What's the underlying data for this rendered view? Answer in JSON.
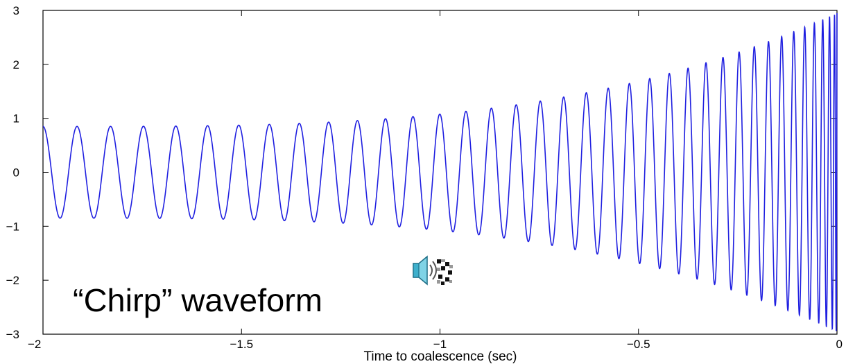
{
  "chart_data": {
    "type": "line",
    "title": "",
    "xlabel": "Time to coalescence (sec)",
    "ylabel": "",
    "xlim": [
      -2,
      0
    ],
    "ylim": [
      -3,
      3
    ],
    "xticks": [
      -2,
      -1.5,
      -1,
      -0.5,
      0
    ],
    "xtick_labels": [
      "−2",
      "−1.5",
      "−1",
      "−0.5",
      "0"
    ],
    "yticks": [
      -3,
      -2,
      -1,
      0,
      1,
      2,
      3
    ],
    "ytick_labels": [
      "−3",
      "−2",
      "−1",
      "0",
      "1",
      "2",
      "3"
    ],
    "grid": false,
    "series": [
      {
        "color": "#1f1fe0",
        "model": "chirp",
        "cycles": 37,
        "amplitude_start": 0.85,
        "amplitude_end": 2.95,
        "phase_at_start": "crest"
      }
    ],
    "annotation": "“Chirp” waveform",
    "speaker_icon": "speaker-icon"
  }
}
